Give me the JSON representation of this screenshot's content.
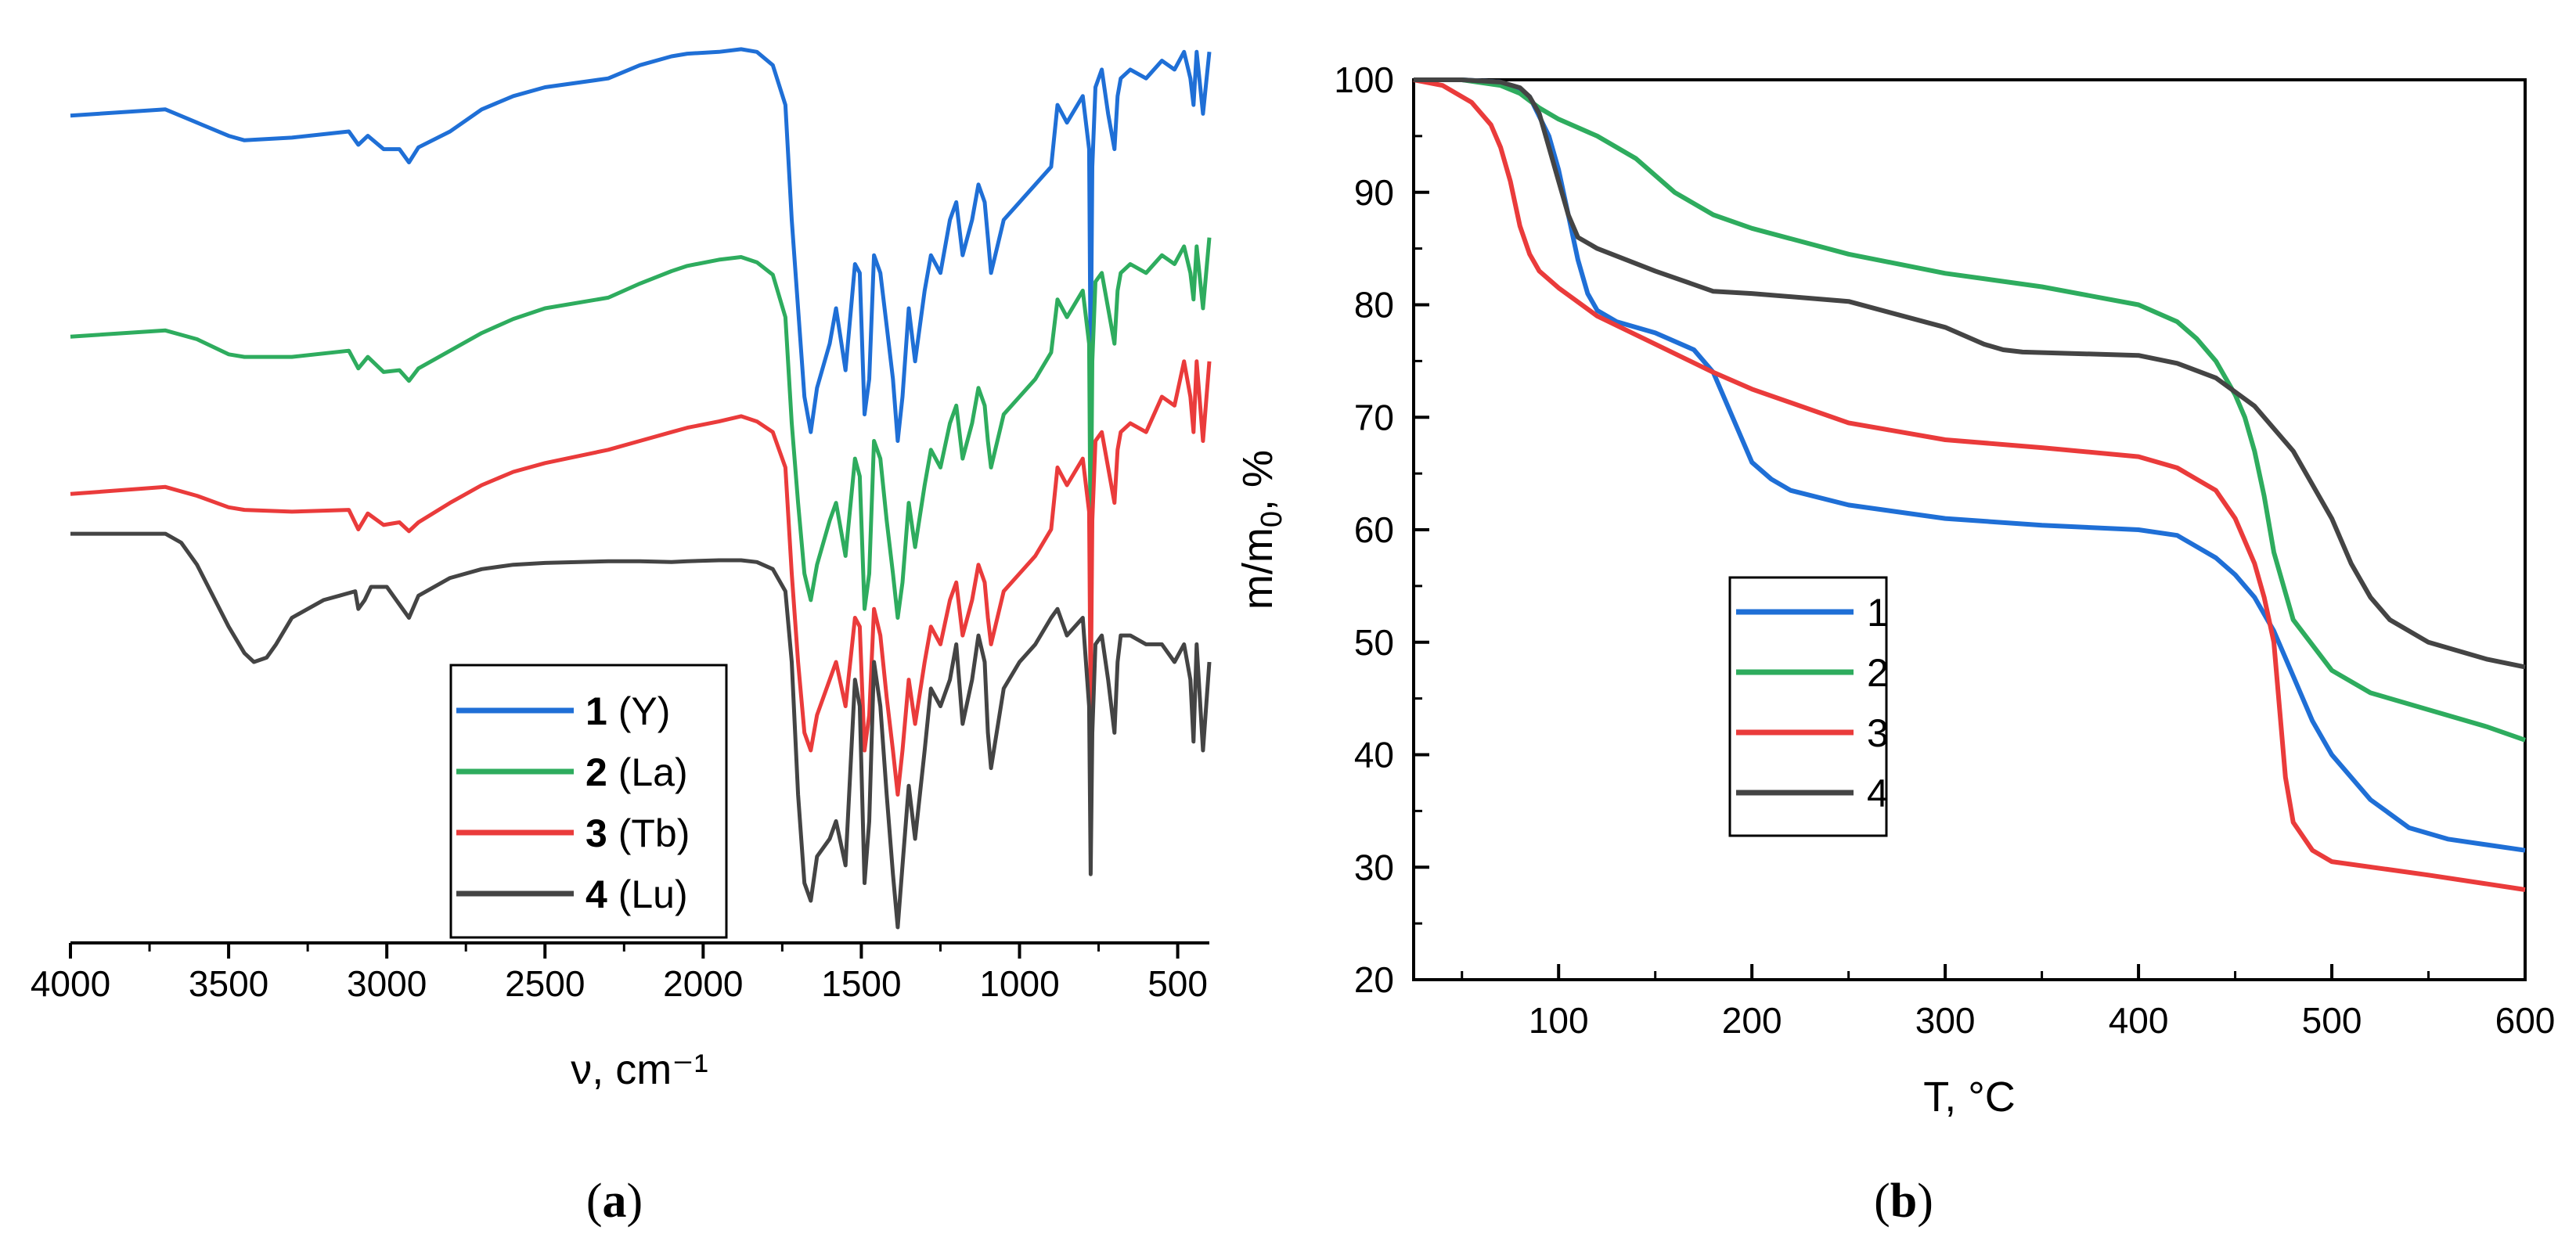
{
  "chart_data": [
    {
      "id": "a",
      "type": "line",
      "title": "",
      "panel_label": "a",
      "xlabel": "ν, cm⁻¹",
      "ylabel": "",
      "xlim": [
        4000,
        400
      ],
      "x_reversed": true,
      "xticks": [
        4000,
        3500,
        3000,
        2500,
        2000,
        1500,
        1000,
        500
      ],
      "yticks_shown": false,
      "legend_position": "bottom-center",
      "legend": [
        {
          "num": "1",
          "text": "(Y)"
        },
        {
          "num": "2",
          "text": "(La)"
        },
        {
          "num": "3",
          "text": "(Tb)"
        },
        {
          "num": "4",
          "text": "(Lu)"
        }
      ],
      "series": [
        {
          "name": "1 (Y)",
          "color": "#1f6fd6",
          "x": [
            4000,
            3700,
            3600,
            3500,
            3450,
            3300,
            3120,
            3090,
            3060,
            3010,
            2960,
            2930,
            2900,
            2800,
            2700,
            2600,
            2500,
            2300,
            2200,
            2100,
            2050,
            1950,
            1880,
            1830,
            1780,
            1740,
            1720,
            1700,
            1680,
            1660,
            1640,
            1600,
            1580,
            1550,
            1520,
            1505,
            1490,
            1475,
            1460,
            1440,
            1420,
            1400,
            1385,
            1370,
            1350,
            1330,
            1300,
            1280,
            1250,
            1220,
            1200,
            1180,
            1150,
            1130,
            1110,
            1100,
            1090,
            1050,
            1000,
            950,
            900,
            880,
            850,
            800,
            780,
            775,
            770,
            760,
            740,
            720,
            700,
            690,
            680,
            650,
            600,
            550,
            510,
            480,
            460,
            450,
            440,
            420,
            400
          ],
          "y": [
            0.918,
            0.925,
            0.91,
            0.895,
            0.89,
            0.893,
            0.9,
            0.885,
            0.895,
            0.88,
            0.88,
            0.865,
            0.882,
            0.9,
            0.925,
            0.94,
            0.95,
            0.96,
            0.975,
            0.985,
            0.988,
            0.99,
            0.993,
            0.99,
            0.975,
            0.93,
            0.8,
            0.7,
            0.6,
            0.56,
            0.61,
            0.66,
            0.7,
            0.63,
            0.75,
            0.74,
            0.58,
            0.62,
            0.76,
            0.74,
            0.68,
            0.62,
            0.55,
            0.6,
            0.7,
            0.64,
            0.72,
            0.76,
            0.74,
            0.8,
            0.82,
            0.76,
            0.8,
            0.84,
            0.82,
            0.78,
            0.74,
            0.8,
            0.82,
            0.84,
            0.86,
            0.93,
            0.91,
            0.94,
            0.88,
            0.62,
            0.86,
            0.95,
            0.97,
            0.92,
            0.88,
            0.94,
            0.96,
            0.97,
            0.96,
            0.98,
            0.97,
            0.99,
            0.96,
            0.93,
            0.99,
            0.92,
            0.99
          ]
        },
        {
          "name": "2 (La)",
          "color": "#2eac5e",
          "x": [
            4000,
            3700,
            3600,
            3500,
            3450,
            3300,
            3120,
            3090,
            3060,
            3010,
            2960,
            2930,
            2900,
            2800,
            2700,
            2600,
            2500,
            2300,
            2200,
            2100,
            2050,
            1950,
            1880,
            1830,
            1780,
            1740,
            1720,
            1700,
            1680,
            1660,
            1640,
            1600,
            1580,
            1550,
            1520,
            1505,
            1490,
            1475,
            1460,
            1440,
            1420,
            1400,
            1385,
            1370,
            1350,
            1330,
            1300,
            1280,
            1250,
            1220,
            1200,
            1180,
            1150,
            1130,
            1110,
            1100,
            1090,
            1050,
            1000,
            950,
            900,
            880,
            850,
            800,
            780,
            775,
            770,
            760,
            740,
            720,
            700,
            690,
            680,
            650,
            600,
            550,
            510,
            480,
            460,
            450,
            440,
            420,
            400
          ],
          "y": [
            0.668,
            0.675,
            0.665,
            0.648,
            0.645,
            0.645,
            0.652,
            0.632,
            0.645,
            0.628,
            0.63,
            0.618,
            0.632,
            0.652,
            0.672,
            0.688,
            0.7,
            0.712,
            0.728,
            0.742,
            0.748,
            0.755,
            0.758,
            0.752,
            0.738,
            0.69,
            0.57,
            0.48,
            0.4,
            0.37,
            0.41,
            0.46,
            0.48,
            0.42,
            0.53,
            0.51,
            0.36,
            0.4,
            0.55,
            0.53,
            0.46,
            0.4,
            0.35,
            0.39,
            0.48,
            0.43,
            0.5,
            0.54,
            0.52,
            0.57,
            0.59,
            0.53,
            0.57,
            0.61,
            0.59,
            0.55,
            0.52,
            0.58,
            0.6,
            0.62,
            0.65,
            0.71,
            0.69,
            0.72,
            0.66,
            0.41,
            0.64,
            0.73,
            0.74,
            0.7,
            0.66,
            0.72,
            0.74,
            0.75,
            0.74,
            0.76,
            0.75,
            0.77,
            0.74,
            0.71,
            0.77,
            0.7,
            0.78
          ]
        },
        {
          "name": "3 (Tb)",
          "color": "#ea3b3b",
          "x": [
            4000,
            3700,
            3600,
            3500,
            3450,
            3300,
            3120,
            3090,
            3060,
            3010,
            2960,
            2930,
            2900,
            2800,
            2700,
            2600,
            2500,
            2300,
            2200,
            2100,
            2050,
            1950,
            1880,
            1830,
            1780,
            1740,
            1720,
            1700,
            1680,
            1660,
            1640,
            1600,
            1580,
            1550,
            1520,
            1505,
            1490,
            1475,
            1460,
            1440,
            1420,
            1400,
            1385,
            1370,
            1350,
            1330,
            1300,
            1280,
            1250,
            1220,
            1200,
            1180,
            1150,
            1130,
            1110,
            1100,
            1090,
            1050,
            1000,
            950,
            900,
            880,
            850,
            800,
            780,
            775,
            770,
            760,
            740,
            720,
            700,
            690,
            680,
            650,
            600,
            550,
            510,
            480,
            460,
            450,
            440,
            420,
            400
          ],
          "y": [
            0.49,
            0.498,
            0.488,
            0.475,
            0.472,
            0.47,
            0.472,
            0.45,
            0.468,
            0.455,
            0.458,
            0.448,
            0.458,
            0.48,
            0.5,
            0.515,
            0.525,
            0.54,
            0.55,
            0.56,
            0.565,
            0.572,
            0.578,
            0.572,
            0.56,
            0.52,
            0.4,
            0.3,
            0.22,
            0.2,
            0.24,
            0.28,
            0.3,
            0.25,
            0.35,
            0.34,
            0.2,
            0.24,
            0.36,
            0.33,
            0.26,
            0.2,
            0.15,
            0.2,
            0.28,
            0.23,
            0.3,
            0.34,
            0.32,
            0.37,
            0.39,
            0.33,
            0.37,
            0.41,
            0.39,
            0.35,
            0.32,
            0.38,
            0.4,
            0.42,
            0.45,
            0.52,
            0.5,
            0.53,
            0.47,
            0.24,
            0.46,
            0.55,
            0.56,
            0.52,
            0.48,
            0.54,
            0.56,
            0.57,
            0.56,
            0.6,
            0.59,
            0.64,
            0.6,
            0.56,
            0.64,
            0.55,
            0.64
          ]
        },
        {
          "name": "4 (Lu)",
          "color": "#444444",
          "x": [
            4000,
            3700,
            3650,
            3600,
            3550,
            3500,
            3450,
            3420,
            3380,
            3350,
            3300,
            3250,
            3200,
            3150,
            3100,
            3090,
            3070,
            3050,
            3000,
            2960,
            2930,
            2900,
            2800,
            2700,
            2600,
            2500,
            2300,
            2200,
            2100,
            2050,
            1950,
            1880,
            1830,
            1780,
            1740,
            1720,
            1700,
            1680,
            1660,
            1640,
            1600,
            1580,
            1550,
            1520,
            1505,
            1490,
            1475,
            1460,
            1440,
            1420,
            1400,
            1385,
            1370,
            1350,
            1330,
            1300,
            1280,
            1250,
            1220,
            1200,
            1180,
            1150,
            1130,
            1110,
            1100,
            1090,
            1050,
            1000,
            950,
            900,
            880,
            850,
            800,
            780,
            775,
            770,
            760,
            740,
            720,
            700,
            690,
            680,
            650,
            600,
            550,
            510,
            480,
            460,
            450,
            440,
            420,
            400
          ],
          "y": [
            0.445,
            0.445,
            0.435,
            0.41,
            0.375,
            0.34,
            0.31,
            0.3,
            0.305,
            0.32,
            0.35,
            0.36,
            0.37,
            0.375,
            0.38,
            0.36,
            0.37,
            0.385,
            0.385,
            0.365,
            0.35,
            0.375,
            0.395,
            0.405,
            0.41,
            0.412,
            0.414,
            0.414,
            0.413,
            0.414,
            0.415,
            0.415,
            0.413,
            0.405,
            0.38,
            0.3,
            0.15,
            0.05,
            0.03,
            0.08,
            0.1,
            0.12,
            0.07,
            0.28,
            0.25,
            0.05,
            0.12,
            0.3,
            0.25,
            0.15,
            0.06,
            0.0,
            0.07,
            0.16,
            0.1,
            0.2,
            0.27,
            0.25,
            0.28,
            0.32,
            0.23,
            0.28,
            0.33,
            0.3,
            0.22,
            0.18,
            0.27,
            0.3,
            0.32,
            0.35,
            0.36,
            0.33,
            0.35,
            0.25,
            0.06,
            0.22,
            0.32,
            0.33,
            0.28,
            0.22,
            0.3,
            0.33,
            0.33,
            0.32,
            0.32,
            0.3,
            0.32,
            0.28,
            0.21,
            0.32,
            0.2,
            0.3
          ]
        }
      ]
    },
    {
      "id": "b",
      "type": "line",
      "title": "",
      "panel_label": "b",
      "xlabel": "T, °C",
      "ylabel": "m/m0, %",
      "xlim": [
        25,
        600
      ],
      "ylim": [
        20,
        100
      ],
      "xticks": [
        100,
        200,
        300,
        400,
        500,
        600
      ],
      "yticks": [
        20,
        30,
        40,
        50,
        60,
        70,
        80,
        90,
        100
      ],
      "legend_position": "center-left",
      "legend": [
        {
          "num": "1",
          "text": ""
        },
        {
          "num": "2",
          "text": ""
        },
        {
          "num": "3",
          "text": ""
        },
        {
          "num": "4",
          "text": ""
        }
      ],
      "series": [
        {
          "name": "1",
          "color": "#1f6fd6",
          "x": [
            25,
            50,
            70,
            85,
            95,
            100,
            105,
            110,
            115,
            120,
            130,
            150,
            170,
            180,
            190,
            200,
            210,
            220,
            250,
            300,
            350,
            400,
            420,
            440,
            450,
            460,
            470,
            480,
            490,
            500,
            520,
            540,
            560,
            580,
            600
          ],
          "y": [
            100,
            100,
            99.8,
            98.5,
            95,
            92,
            88,
            84,
            81,
            79.5,
            78.5,
            77.5,
            76,
            74,
            70,
            66,
            64.5,
            63.5,
            62.2,
            61,
            60.4,
            60,
            59.5,
            57.5,
            56,
            54,
            51,
            47,
            43,
            40,
            36,
            33.5,
            32.5,
            32,
            31.5
          ]
        },
        {
          "name": "2",
          "color": "#2eac5e",
          "x": [
            25,
            50,
            70,
            80,
            90,
            100,
            120,
            140,
            160,
            180,
            200,
            250,
            300,
            350,
            400,
            420,
            430,
            440,
            450,
            455,
            460,
            465,
            470,
            480,
            500,
            520,
            550,
            580,
            600
          ],
          "y": [
            100,
            100,
            99.5,
            98.8,
            97.5,
            96.5,
            95,
            93,
            90,
            88,
            86.8,
            84.5,
            82.8,
            81.6,
            80,
            78.5,
            77,
            75,
            72,
            70,
            67,
            63,
            58,
            52,
            47.5,
            45.5,
            44,
            42.5,
            41.3
          ]
        },
        {
          "name": "3",
          "color": "#ea3b3b",
          "x": [
            25,
            40,
            55,
            65,
            70,
            75,
            80,
            85,
            90,
            100,
            120,
            150,
            180,
            200,
            250,
            300,
            350,
            400,
            420,
            440,
            450,
            460,
            465,
            470,
            473,
            476,
            480,
            490,
            500,
            550,
            600
          ],
          "y": [
            100,
            99.5,
            98,
            96,
            94,
            91,
            87,
            84.5,
            83,
            81.5,
            79,
            76.5,
            74,
            72.5,
            69.5,
            68,
            67.3,
            66.5,
            65.5,
            63.5,
            61,
            57,
            54,
            50,
            44,
            38,
            34,
            31.5,
            30.5,
            29.3,
            28
          ]
        },
        {
          "name": "4",
          "color": "#444444",
          "x": [
            25,
            50,
            70,
            80,
            85,
            90,
            95,
            100,
            105,
            110,
            120,
            150,
            180,
            200,
            250,
            300,
            320,
            330,
            340,
            400,
            420,
            440,
            460,
            480,
            500,
            510,
            520,
            530,
            550,
            580,
            600
          ],
          "y": [
            100,
            100,
            99.8,
            99.3,
            98.5,
            97,
            94,
            91,
            88,
            86,
            85,
            83,
            81.2,
            81,
            80.3,
            78,
            76.5,
            76,
            75.8,
            75.5,
            74.8,
            73.5,
            71,
            67,
            61,
            57,
            54,
            52,
            50,
            48.5,
            47.8
          ]
        }
      ]
    }
  ]
}
